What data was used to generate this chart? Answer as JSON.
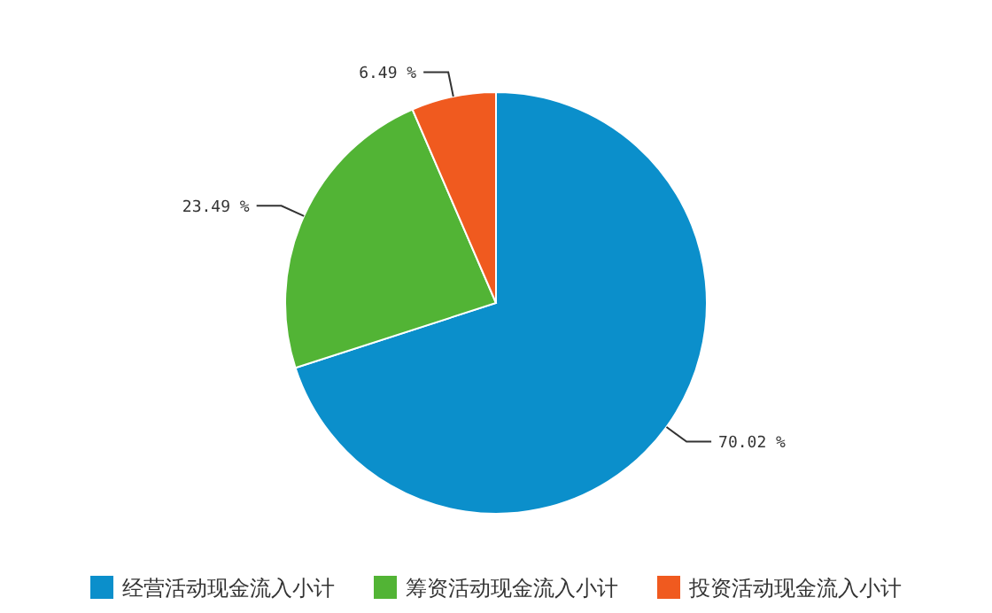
{
  "chart_data": {
    "type": "pie",
    "categories": [
      "经营活动现金流入小计",
      "筹资活动现金流入小计",
      "投资活动现金流入小计"
    ],
    "values": [
      70.02,
      23.49,
      6.49
    ],
    "colors": [
      "#0b8fcb",
      "#52b435",
      "#f05a1f"
    ],
    "value_labels": [
      "70.02 %",
      "23.49 %",
      "6.49 %"
    ],
    "legend": "bottom"
  }
}
